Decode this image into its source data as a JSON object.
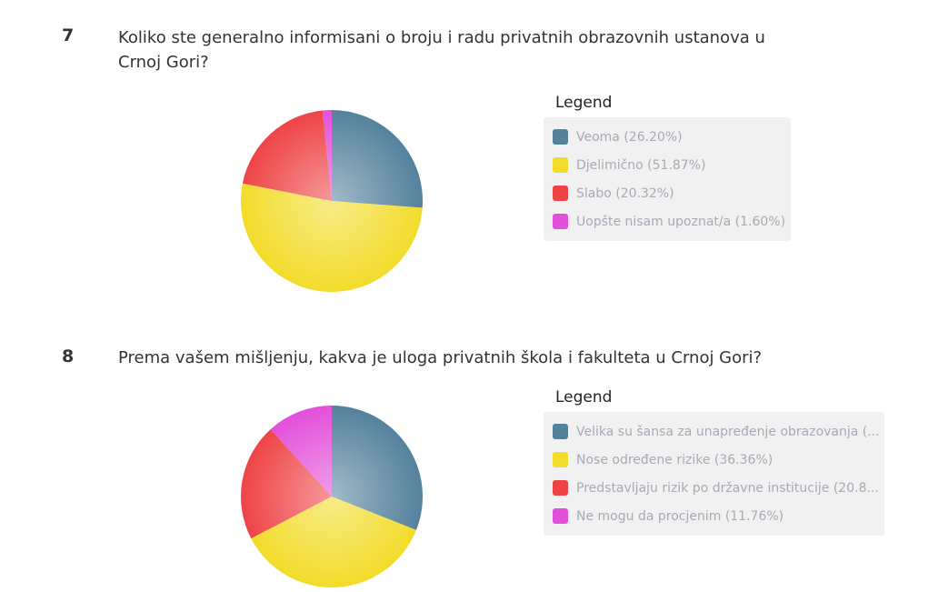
{
  "chart_data": [
    {
      "type": "pie",
      "number": "7",
      "title": "Koliko ste generalno informisani o broju i radu privatnih obrazovnih ustanova u Crnoj Gori?",
      "legend_title": "Legend",
      "legend_placement": "right",
      "labels": [
        "Veoma (26.20%)",
        "Djelimično (51.87%)",
        "Slabo (20.32%)",
        "Uopšte nisam upoznat/a (1.60%)"
      ],
      "values": [
        26.2,
        51.87,
        20.32,
        1.6
      ],
      "colors": [
        "#54819c",
        "#f2dc2a",
        "#ee4446",
        "#e34fda"
      ]
    },
    {
      "type": "pie",
      "number": "8",
      "title": "Prema vašem mišljenju, kakva je uloga privatnih škola i fakulteta u Crnoj Gori?",
      "legend_title": "Legend",
      "legend_placement": "right",
      "labels": [
        "Velika su šansa za unapređenje obrazovanja (...",
        "Nose određene rizike (36.36%)",
        "Predstavljaju rizik po državne institucije (20.8...",
        "Ne mogu da procjenim (11.76%)"
      ],
      "values": [
        31.02,
        36.36,
        20.86,
        11.76
      ],
      "colors": [
        "#54819c",
        "#f2dc2a",
        "#ee4446",
        "#e34fda"
      ]
    }
  ]
}
